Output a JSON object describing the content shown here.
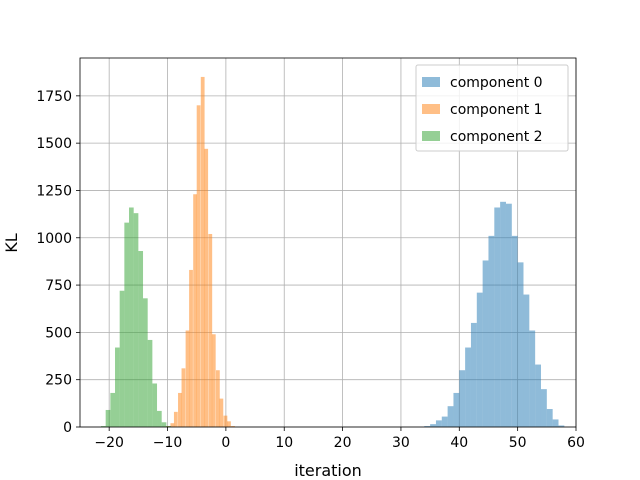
{
  "chart_data": {
    "type": "histogram",
    "title": "",
    "xlabel": "iteration",
    "ylabel": "KL",
    "xlim": [
      -25,
      60
    ],
    "ylim": [
      0,
      1950
    ],
    "xticks": [
      -20,
      -10,
      0,
      10,
      20,
      30,
      40,
      50,
      60
    ],
    "yticks": [
      0,
      250,
      500,
      750,
      1000,
      1250,
      1500,
      1750
    ],
    "grid": true,
    "legend_position": "top-right",
    "series": [
      {
        "name": "component 0",
        "color": "#1f77b4",
        "bin_width": 1,
        "bins": [
          [
            34,
            5
          ],
          [
            35,
            15
          ],
          [
            36,
            35
          ],
          [
            37,
            55
          ],
          [
            38,
            110
          ],
          [
            39,
            180
          ],
          [
            40,
            300
          ],
          [
            41,
            420
          ],
          [
            42,
            550
          ],
          [
            43,
            710
          ],
          [
            44,
            880
          ],
          [
            45,
            1010
          ],
          [
            46,
            1160
          ],
          [
            47,
            1190
          ],
          [
            48,
            1180
          ],
          [
            49,
            1010
          ],
          [
            50,
            870
          ],
          [
            51,
            700
          ],
          [
            52,
            510
          ],
          [
            53,
            330
          ],
          [
            54,
            200
          ],
          [
            55,
            95
          ],
          [
            56,
            40
          ],
          [
            57,
            8
          ]
        ]
      },
      {
        "name": "component 1",
        "color": "#ff7f0e",
        "bin_width": 0.65,
        "bins": [
          [
            -10.2,
            5
          ],
          [
            -9.5,
            20
          ],
          [
            -8.9,
            80
          ],
          [
            -8.2,
            180
          ],
          [
            -7.6,
            310
          ],
          [
            -6.9,
            510
          ],
          [
            -6.3,
            830
          ],
          [
            -5.6,
            1230
          ],
          [
            -5.0,
            1700
          ],
          [
            -4.3,
            1850
          ],
          [
            -3.7,
            1470
          ],
          [
            -3.0,
            1020
          ],
          [
            -2.4,
            490
          ],
          [
            -1.7,
            300
          ],
          [
            -1.1,
            150
          ],
          [
            -0.4,
            60
          ],
          [
            0.2,
            30
          ],
          [
            0.9,
            5
          ]
        ]
      },
      {
        "name": "component 2",
        "color": "#2ca02c",
        "bin_width": 0.8,
        "bins": [
          [
            -21.4,
            5
          ],
          [
            -20.6,
            90
          ],
          [
            -19.8,
            180
          ],
          [
            -19.0,
            420
          ],
          [
            -18.2,
            720
          ],
          [
            -17.4,
            1080
          ],
          [
            -16.6,
            1160
          ],
          [
            -15.8,
            1130
          ],
          [
            -15.0,
            930
          ],
          [
            -14.2,
            680
          ],
          [
            -13.4,
            460
          ],
          [
            -12.6,
            230
          ],
          [
            -11.8,
            85
          ],
          [
            -11.0,
            25
          ],
          [
            -10.2,
            5
          ]
        ]
      }
    ]
  }
}
